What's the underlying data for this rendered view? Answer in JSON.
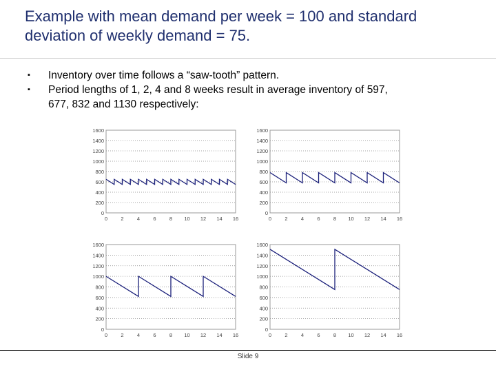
{
  "title": {
    "line1": "Example with mean demand per week = 100 and standard",
    "line2": "deviation of weekly demand = 75."
  },
  "bullets": [
    {
      "lines": [
        "Inventory over time follows a “saw-tooth” pattern."
      ]
    },
    {
      "lines": [
        "Period lengths of 1, 2, 4 and 8 weeks result in average inventory of 597,",
        "677, 832 and 1130 respectively:"
      ]
    }
  ],
  "footer": "Slide 9",
  "colors": {
    "title": "#1f2f6e",
    "series": "#1a1f7a",
    "grid": "#888888"
  },
  "chart_data": [
    {
      "type": "line",
      "period_weeks": 1,
      "title": "",
      "xlabel": "",
      "ylabel": "",
      "xlim": [
        0,
        16
      ],
      "ylim": [
        0,
        1600
      ],
      "x_ticks": [
        "0",
        "2",
        "4",
        "6",
        "8",
        "10",
        "12",
        "14",
        "16"
      ],
      "y_ticks": [
        "0",
        "200",
        "400",
        "600",
        "800",
        "1000",
        "1200",
        "1400",
        "1600"
      ],
      "grid": true,
      "series": [
        {
          "peak": 650,
          "trough": 550
        }
      ]
    },
    {
      "type": "line",
      "period_weeks": 2,
      "title": "",
      "xlabel": "",
      "ylabel": "",
      "xlim": [
        0,
        16
      ],
      "ylim": [
        0,
        1600
      ],
      "x_ticks": [
        "0",
        "2",
        "4",
        "6",
        "8",
        "10",
        "12",
        "14",
        "16"
      ],
      "y_ticks": [
        "0",
        "200",
        "400",
        "600",
        "800",
        "1000",
        "1200",
        "1400",
        "1600"
      ],
      "grid": true,
      "series": [
        {
          "peak": 780,
          "trough": 580
        }
      ]
    },
    {
      "type": "line",
      "period_weeks": 4,
      "title": "",
      "xlabel": "",
      "ylabel": "",
      "xlim": [
        0,
        16
      ],
      "ylim": [
        0,
        1600
      ],
      "x_ticks": [
        "0",
        "2",
        "4",
        "6",
        "8",
        "10",
        "12",
        "14",
        "16"
      ],
      "y_ticks": [
        "0",
        "200",
        "400",
        "600",
        "800",
        "1000",
        "1200",
        "1400",
        "1600"
      ],
      "grid": true,
      "series": [
        {
          "peak": 1000,
          "trough": 620
        }
      ]
    },
    {
      "type": "line",
      "period_weeks": 8,
      "title": "",
      "xlabel": "",
      "ylabel": "",
      "xlim": [
        0,
        16
      ],
      "ylim": [
        0,
        1600
      ],
      "x_ticks": [
        "0",
        "2",
        "4",
        "6",
        "8",
        "10",
        "12",
        "14",
        "16"
      ],
      "y_ticks": [
        "0",
        "200",
        "400",
        "600",
        "800",
        "1000",
        "1200",
        "1400",
        "1600"
      ],
      "grid": true,
      "series": [
        {
          "peak": 1510,
          "trough": 750
        }
      ]
    }
  ]
}
